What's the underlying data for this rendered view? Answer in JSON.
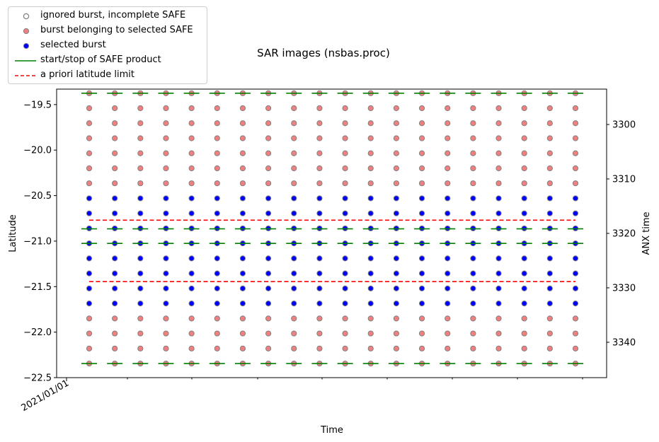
{
  "chart_data": {
    "type": "scatter",
    "title": "SAR images (nsbas.proc)",
    "xlabel": "Time",
    "ylabel": "Latitude",
    "y2label": "ANX time",
    "x_tick_labels": [
      "2021/01/01"
    ],
    "y_ticks": [
      "−19.5",
      "−20.0",
      "−20.5",
      "−21.0",
      "−21.5",
      "−22.0",
      "−22.5"
    ],
    "y_tick_values": [
      -19.5,
      -20.0,
      -20.5,
      -21.0,
      -21.5,
      -22.0,
      -22.5
    ],
    "y2_ticks": [
      "3300",
      "3310",
      "3320",
      "3330",
      "3340"
    ],
    "y2_tick_values": [
      3300,
      3310,
      3320,
      3330,
      3340
    ],
    "ylim": [
      -22.5,
      -19.33
    ],
    "y2lim": [
      3346.5,
      3293.5
    ],
    "n_acquisitions": 20,
    "burst_latitudes": [
      -19.375,
      -19.54,
      -19.705,
      -19.87,
      -20.035,
      -20.2,
      -20.365,
      -20.53,
      -20.695,
      -20.86,
      -21.025,
      -21.19,
      -21.355,
      -21.52,
      -21.685,
      -21.85,
      -22.015,
      -22.18,
      -22.345
    ],
    "burst_categories": [
      "burst belonging to selected SAFE",
      "burst belonging to selected SAFE",
      "burst belonging to selected SAFE",
      "burst belonging to selected SAFE",
      "burst belonging to selected SAFE",
      "burst belonging to selected SAFE",
      "burst belonging to selected SAFE",
      "selected burst",
      "selected burst",
      "selected burst",
      "selected burst",
      "selected burst",
      "selected burst",
      "selected burst",
      "selected burst",
      "burst belonging to selected SAFE",
      "burst belonging to selected SAFE",
      "burst belonging to selected SAFE",
      "burst belonging to selected SAFE"
    ],
    "safe_start_stop_latitudes": [
      -19.375,
      -20.865,
      -21.025,
      -22.345
    ],
    "a_priori_latitude_limits": [
      -20.77,
      -21.445
    ],
    "series": [
      {
        "name": "ignored burst, incomplete SAFE",
        "marker": "open-circle",
        "color": "#808080"
      },
      {
        "name": "burst belonging to selected SAFE",
        "marker": "circle",
        "color": "#f08080"
      },
      {
        "name": "selected burst",
        "marker": "circle",
        "color": "#0000ff"
      },
      {
        "name": "start/stop of SAFE product",
        "marker": "line",
        "color": "#008000"
      },
      {
        "name": "a priori latitude limit",
        "marker": "dashed-line",
        "color": "#ff0000"
      }
    ],
    "legend_placement": "top-left (outside axes)",
    "grid": false
  }
}
